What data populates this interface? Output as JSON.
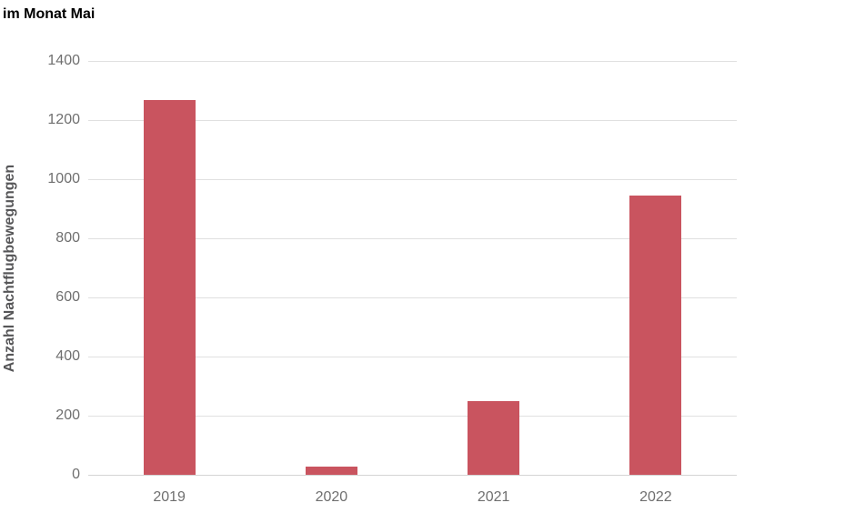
{
  "title": "im Monat Mai",
  "chart_data": {
    "type": "bar",
    "title": "im Monat Mai",
    "categories": [
      "2019",
      "2020",
      "2021",
      "2022"
    ],
    "values": [
      1268,
      27,
      248,
      946
    ],
    "xlabel": "",
    "ylabel": "Anzahl Nachtflugbewegungen",
    "ylim": [
      0,
      1400
    ],
    "yticks": [
      0,
      200,
      400,
      600,
      800,
      1000,
      1200,
      1400
    ],
    "grid": true,
    "legend": "none",
    "colors": {
      "bar": "#c9545f",
      "gridline": "#e0e0e0",
      "baseline": "#d4d4d4",
      "tick_label": "#6f6f6f",
      "axis_title": "#565658",
      "title": "#000000",
      "background": "#ffffff"
    }
  }
}
